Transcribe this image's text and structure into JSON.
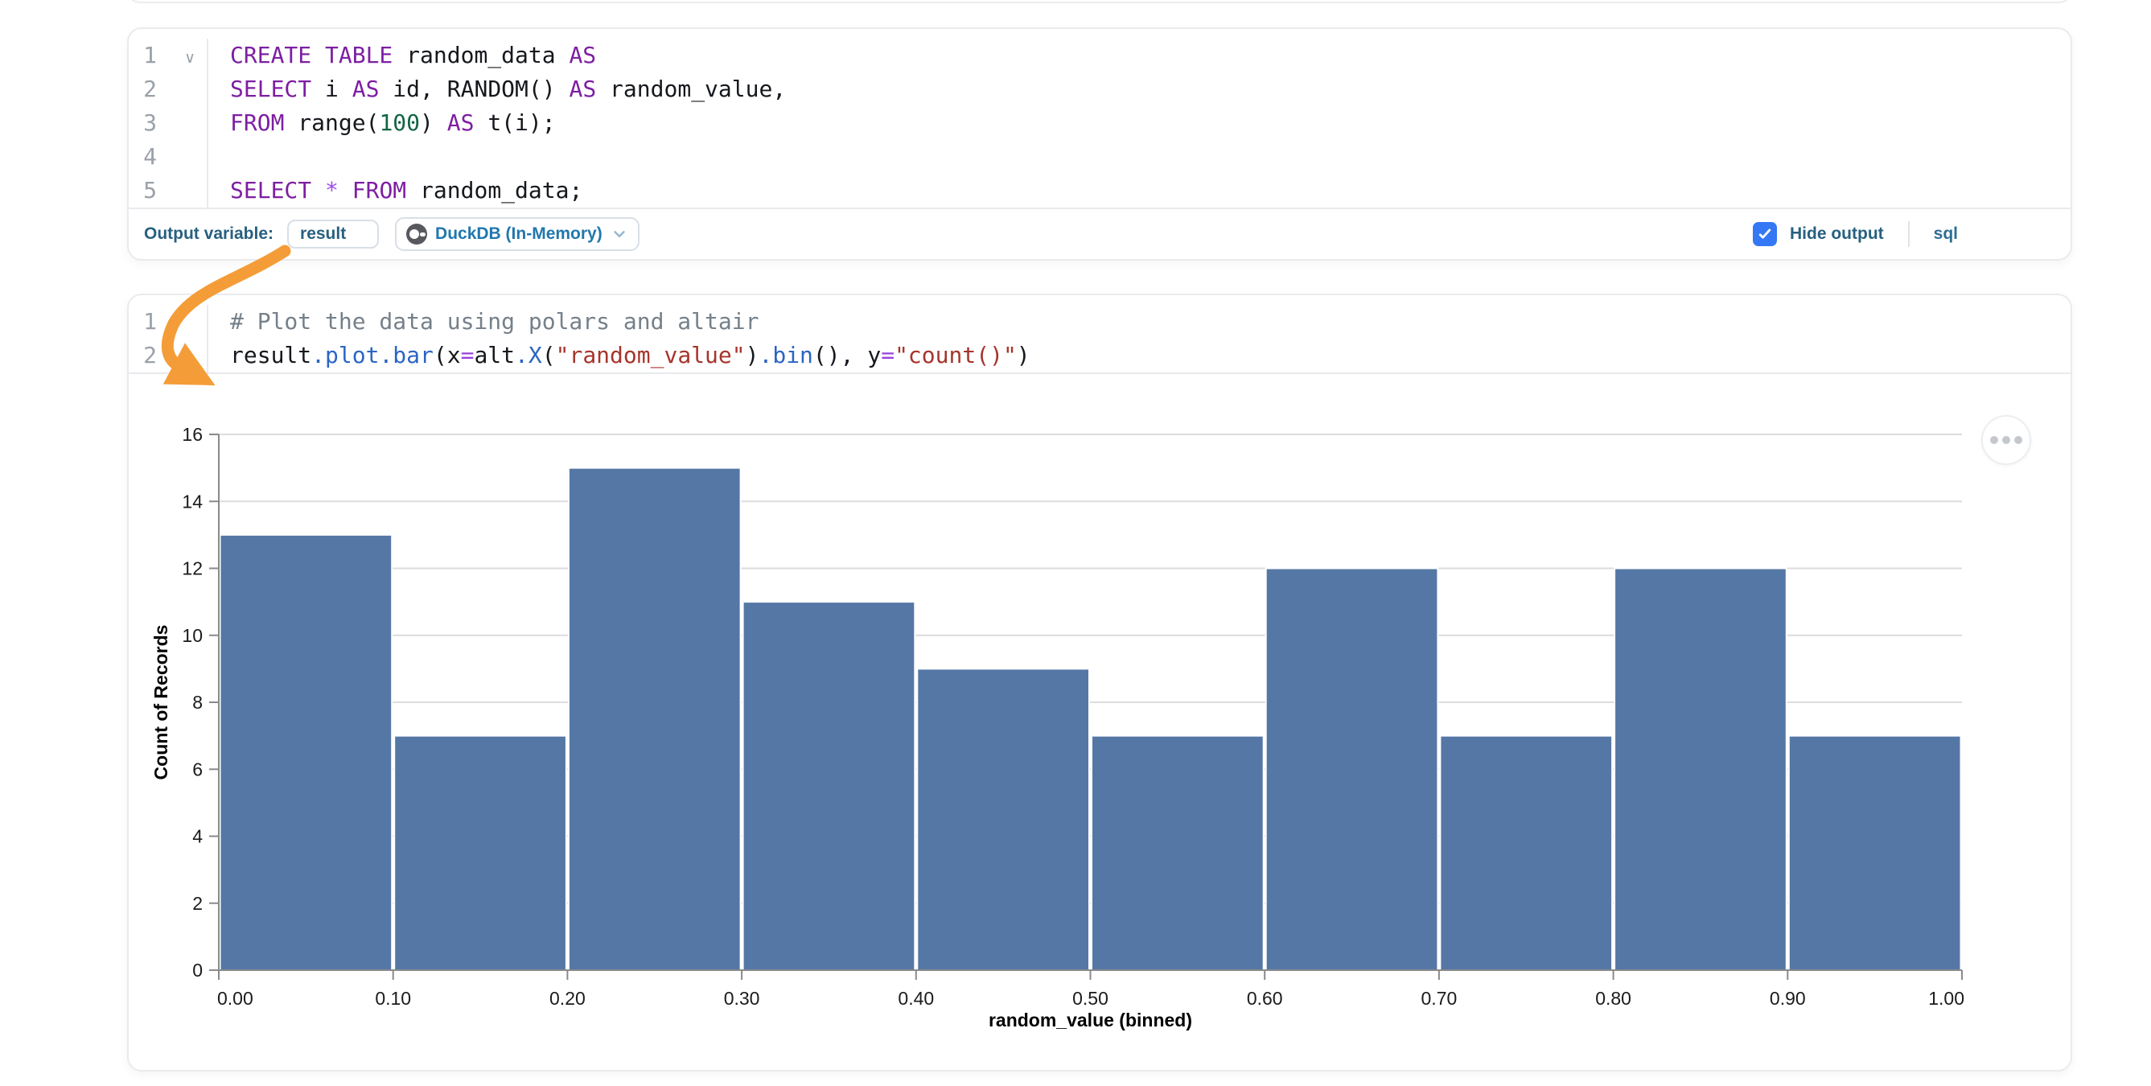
{
  "colors": {
    "bar": "#5577a6",
    "arrow_annotation": "#f49d38",
    "checkbox_checked": "#3478f6",
    "footer_label": "#27607f",
    "engine_text": "#2177ad",
    "sql_keyword": "#7d1fa2",
    "code_string": "#a5352c",
    "code_number": "#116644",
    "code_method": "#2a65c4",
    "code_comment": "#75808a"
  },
  "icons": {
    "engine": "duckdb-icon",
    "engine_dropdown": "chevron-down-icon",
    "fold": "chevron-down-icon",
    "checkbox": "checkmark-icon",
    "more_options": "ellipsis-icon"
  },
  "cells": [
    {
      "id": "sql-cell",
      "language": "sql",
      "fold_indicator_line": 0,
      "gutter": [
        "1",
        "2",
        "3",
        "4",
        "5"
      ],
      "code_lines": [
        [
          {
            "t": "CREATE TABLE",
            "c": "kw"
          },
          {
            "t": " random_data ",
            "c": "pl"
          },
          {
            "t": "AS",
            "c": "kw"
          }
        ],
        [
          {
            "t": "SELECT",
            "c": "kw"
          },
          {
            "t": " i ",
            "c": "pl"
          },
          {
            "t": "AS",
            "c": "kw"
          },
          {
            "t": " id, RANDOM() ",
            "c": "pl"
          },
          {
            "t": "AS",
            "c": "kw"
          },
          {
            "t": " random_value,",
            "c": "pl"
          }
        ],
        [
          {
            "t": "FROM",
            "c": "kw"
          },
          {
            "t": " range(",
            "c": "pl"
          },
          {
            "t": "100",
            "c": "num"
          },
          {
            "t": ") ",
            "c": "pl"
          },
          {
            "t": "AS",
            "c": "kw"
          },
          {
            "t": " t(i);",
            "c": "pl"
          }
        ],
        [],
        [
          {
            "t": "SELECT",
            "c": "kw"
          },
          {
            "t": " ",
            "c": "pl"
          },
          {
            "t": "*",
            "c": "star"
          },
          {
            "t": " ",
            "c": "pl"
          },
          {
            "t": "FROM",
            "c": "kw"
          },
          {
            "t": " random_data;",
            "c": "pl"
          }
        ]
      ],
      "footer": {
        "output_variable_label": "Output variable:",
        "output_variable_value": "result",
        "engine_label": "DuckDB (In-Memory)",
        "hide_output_label": "Hide output",
        "hide_output_checked": true,
        "language_badge": "sql"
      }
    },
    {
      "id": "python-cell",
      "language": "python",
      "gutter": [
        "1",
        "2"
      ],
      "code_lines": [
        [
          {
            "t": "# Plot the data using polars and altair",
            "c": "cm"
          }
        ],
        [
          {
            "t": "result",
            "c": "pl"
          },
          {
            "t": ".plot.bar",
            "c": "fn"
          },
          {
            "t": "(x",
            "c": "pl"
          },
          {
            "t": "=",
            "c": "op"
          },
          {
            "t": "alt",
            "c": "pl"
          },
          {
            "t": ".X",
            "c": "fn"
          },
          {
            "t": "(",
            "c": "pl"
          },
          {
            "t": "\"random_value\"",
            "c": "str"
          },
          {
            "t": ")",
            "c": "pl"
          },
          {
            "t": ".bin",
            "c": "fn"
          },
          {
            "t": "(), y",
            "c": "pl"
          },
          {
            "t": "=",
            "c": "op"
          },
          {
            "t": "\"count()\"",
            "c": "str"
          },
          {
            "t": ")",
            "c": "pl"
          }
        ]
      ]
    }
  ],
  "chart_data": {
    "type": "bar",
    "subtype": "histogram",
    "title": "",
    "xlabel": "random_value (binned)",
    "ylabel": "Count of Records",
    "bin_edges": [
      0.0,
      0.1,
      0.2,
      0.3,
      0.4,
      0.5,
      0.6,
      0.7,
      0.8,
      0.9,
      1.0
    ],
    "values": [
      13,
      7,
      15,
      11,
      9,
      7,
      12,
      7,
      12,
      7
    ],
    "xtick_labels": [
      "0.00",
      "0.10",
      "0.20",
      "0.30",
      "0.40",
      "0.50",
      "0.60",
      "0.70",
      "0.80",
      "0.90",
      "1.00"
    ],
    "yticks": [
      0,
      2,
      4,
      6,
      8,
      10,
      12,
      14,
      16
    ],
    "ylim": [
      0,
      16
    ],
    "xlim": [
      0.0,
      1.0
    ],
    "grid": true,
    "legend_position": "none",
    "bar_color": "#5577a6"
  }
}
